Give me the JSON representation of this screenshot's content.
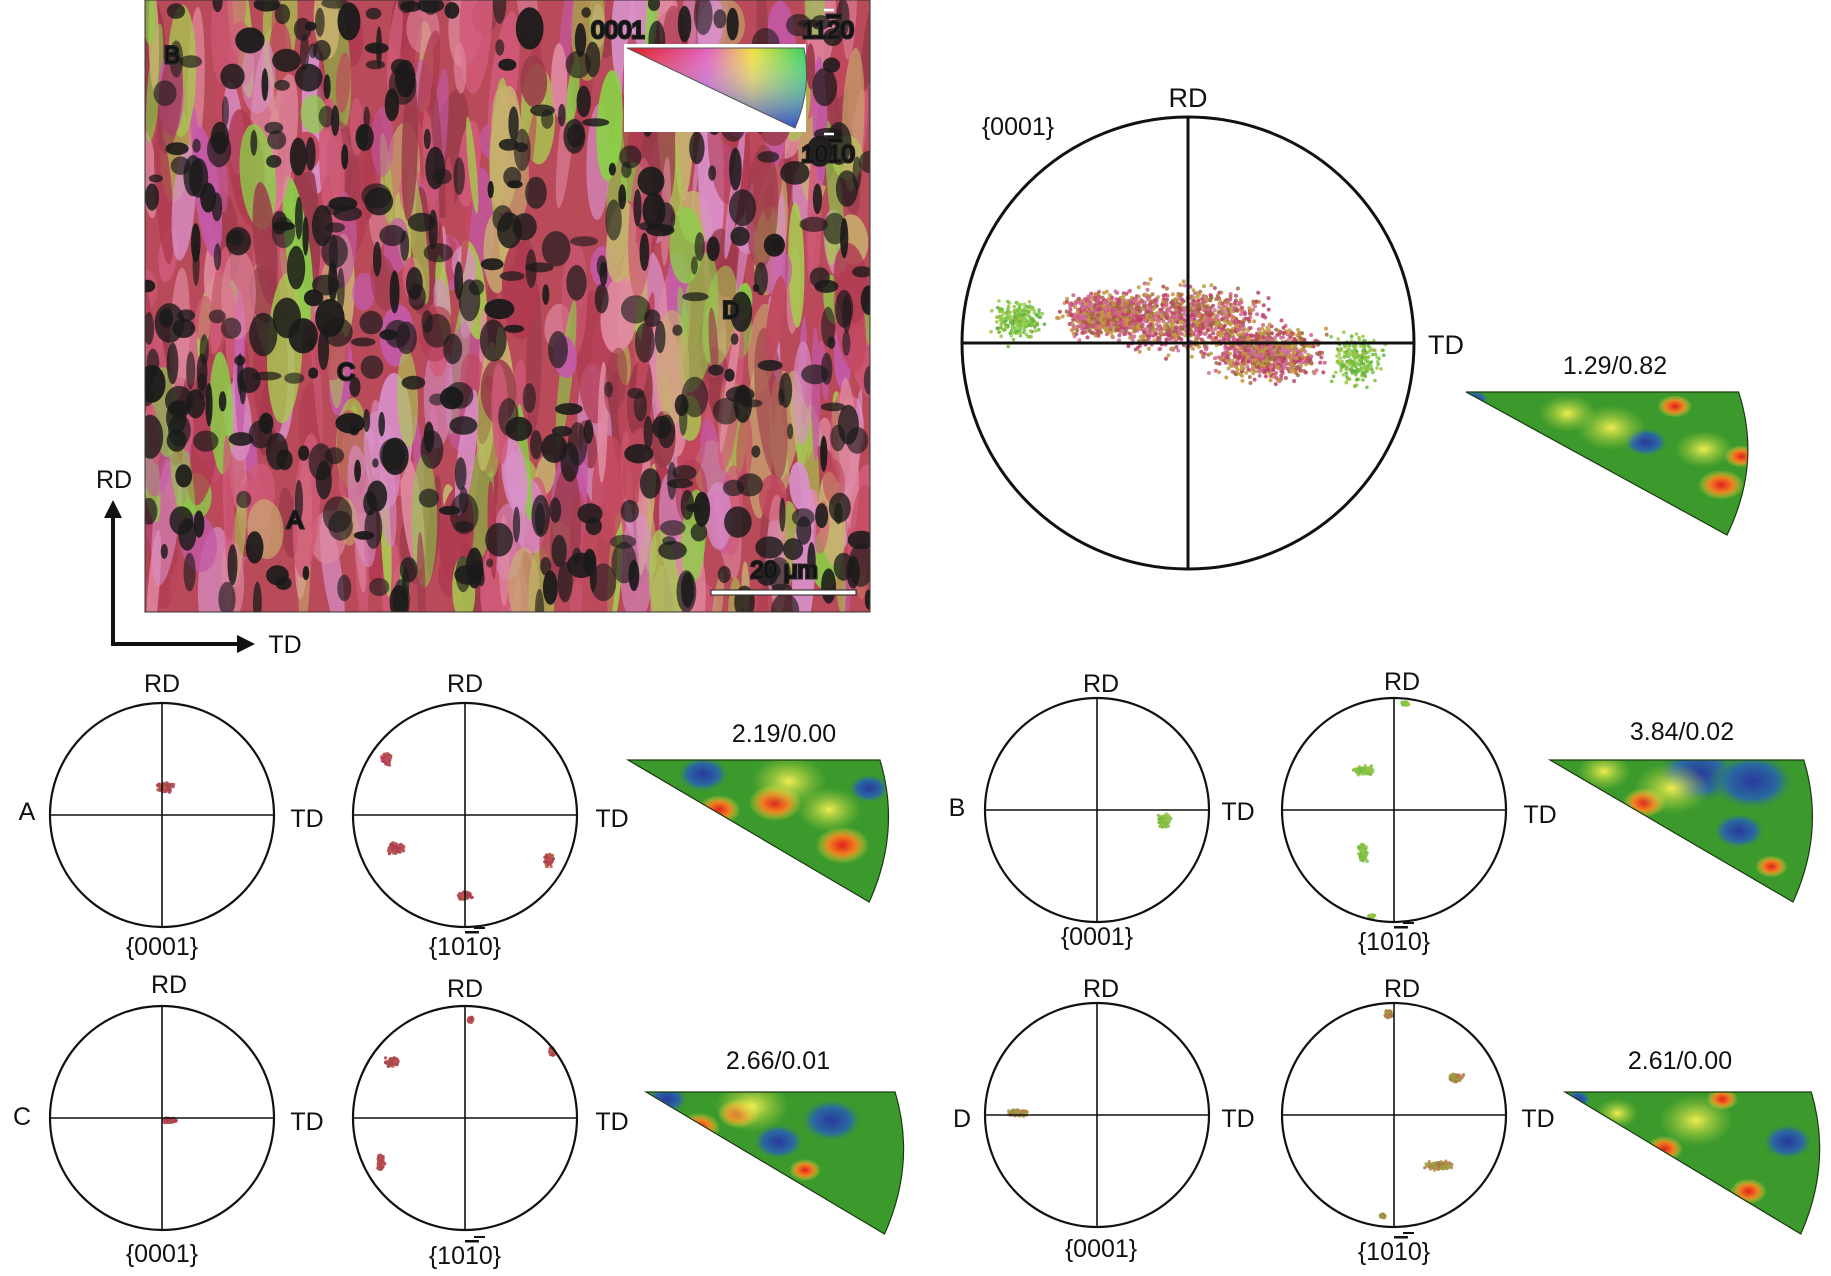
{
  "ebsd_map": {
    "grain_labels": [
      {
        "letter": "A",
        "label": "A"
      },
      {
        "letter": "B",
        "label": "B"
      },
      {
        "letter": "C",
        "label": "C"
      },
      {
        "letter": "D",
        "label": "D"
      }
    ],
    "scale_bar": {
      "value": "20",
      "unit": "μm"
    },
    "legend": {
      "corner_0001": "0001",
      "corner_1120": {
        "pre": "11",
        "bar": "2",
        "post": "0"
      },
      "corner_1010": {
        "pre": "10",
        "bar": "1",
        "post": "0"
      }
    },
    "axes": {
      "rd": "RD",
      "td": "TD"
    }
  },
  "overall": {
    "pole_figure": {
      "family": "{0001}",
      "rd": "RD",
      "td": "TD"
    },
    "ipf_ratio": "1.29/0.82"
  },
  "grains": [
    {
      "letter": "A",
      "pf0001": {
        "label": "{0001}",
        "rd": "RD",
        "td": "TD"
      },
      "pf1010": {
        "pre": "{10",
        "bar": "1",
        "post": "0}",
        "rd": "RD",
        "td": "TD"
      },
      "ipf_ratio": "2.19/0.00"
    },
    {
      "letter": "B",
      "pf0001": {
        "label": "{0001}",
        "rd": "RD",
        "td": "TD"
      },
      "pf1010": {
        "pre": "{10",
        "bar": "1",
        "post": "0}",
        "rd": "RD",
        "td": "TD"
      },
      "ipf_ratio": "3.84/0.02"
    },
    {
      "letter": "C",
      "pf0001": {
        "label": "{0001}",
        "rd": "RD",
        "td": "TD"
      },
      "pf1010": {
        "pre": "{10",
        "bar": "1",
        "post": "0}",
        "rd": "RD",
        "td": "TD"
      },
      "ipf_ratio": "2.66/0.01"
    },
    {
      "letter": "D",
      "pf0001": {
        "label": "{0001}",
        "rd": "RD",
        "td": "TD"
      },
      "pf1010": {
        "pre": "{10",
        "bar": "1",
        "post": "0}",
        "rd": "RD",
        "td": "TD"
      },
      "ipf_ratio": "2.61/0.00"
    }
  ],
  "colors": {
    "ipf_red": "#c83040",
    "ipf_green": "#58c040",
    "ipf_blue": "#3040b0",
    "ipf_magenta": "#c050b0",
    "ipf_yellow": "#d8d840",
    "boundary_black": "#1a1a1a",
    "density_green": "#3c9a2c",
    "density_yellow": "#e8e23a",
    "density_red": "#e0201c",
    "density_blue": "#283a9c"
  }
}
